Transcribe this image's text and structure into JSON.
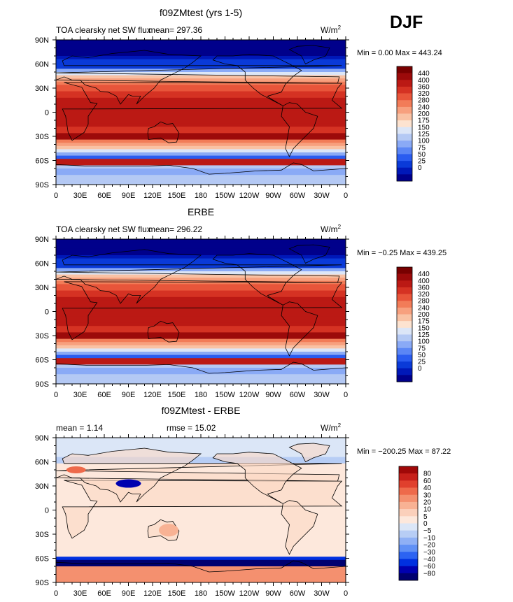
{
  "season_label": "DJF",
  "x_ticks": [
    "0",
    "30E",
    "60E",
    "90E",
    "120E",
    "150E",
    "180",
    "150W",
    "120W",
    "90W",
    "60W",
    "30W",
    "0"
  ],
  "y_ticks": [
    "90N",
    "60N",
    "30N",
    "0",
    "30S",
    "60S",
    "90S"
  ],
  "colors": {
    "flux_scale": [
      "#00008b",
      "#0018b8",
      "#0a3ad8",
      "#2a5cf0",
      "#5b86f5",
      "#8aaaf6",
      "#b4c9f4",
      "#dce6f7",
      "#fde3d0",
      "#f9c2a4",
      "#f7a07e",
      "#f27c58",
      "#e8553a",
      "#d53223",
      "#bb1914",
      "#9c0a0a",
      "#780000"
    ],
    "diff_scale": [
      "#000070",
      "#0000b0",
      "#0030e0",
      "#2c63f2",
      "#6090f5",
      "#8fb0f5",
      "#b7cdf5",
      "#dbe6f7",
      "#fde8dc",
      "#fbd0bb",
      "#f8b294",
      "#f4906f",
      "#ee6a4b",
      "#e0402d",
      "#c7201a",
      "#a00808"
    ]
  },
  "chart_data": [
    {
      "type": "heatmap",
      "title": "f09ZMtest (yrs 1-5)",
      "left_label": "TOA clearsky net SW flux",
      "mean_label": "mean= 297.36",
      "units_label": "W/m",
      "units_exp": "2",
      "range_text": "Min =    0.00 Max = 443.24",
      "xlim": [
        0,
        360
      ],
      "ylim": [
        -90,
        90
      ],
      "colorbar_labels": [
        "440",
        "400",
        "360",
        "320",
        "280",
        "240",
        "200",
        "175",
        "150",
        "125",
        "100",
        "75",
        "50",
        "25",
        "0"
      ]
    },
    {
      "type": "heatmap",
      "title": "ERBE",
      "left_label": "TOA clearsky net SW flux",
      "mean_label": "mean= 296.22",
      "units_label": "W/m",
      "units_exp": "2",
      "range_text": "Min =  −0.25 Max = 439.25",
      "xlim": [
        0,
        360
      ],
      "ylim": [
        -90,
        90
      ],
      "colorbar_labels": [
        "440",
        "400",
        "360",
        "320",
        "280",
        "240",
        "200",
        "175",
        "150",
        "125",
        "100",
        "75",
        "50",
        "25",
        "0"
      ]
    },
    {
      "type": "heatmap",
      "title": "f09ZMtest - ERBE",
      "left_label": "mean =    1.14",
      "mean_label": "rmse =   15.02",
      "units_label": "W/m",
      "units_exp": "2",
      "range_text": "Min = −200.25 Max =  87.22",
      "xlim": [
        0,
        360
      ],
      "ylim": [
        -90,
        90
      ],
      "colorbar_labels": [
        "80",
        "60",
        "40",
        "30",
        "20",
        "10",
        "5",
        "0",
        "−5",
        "−10",
        "−20",
        "−30",
        "−40",
        "−60",
        "−80"
      ]
    }
  ]
}
